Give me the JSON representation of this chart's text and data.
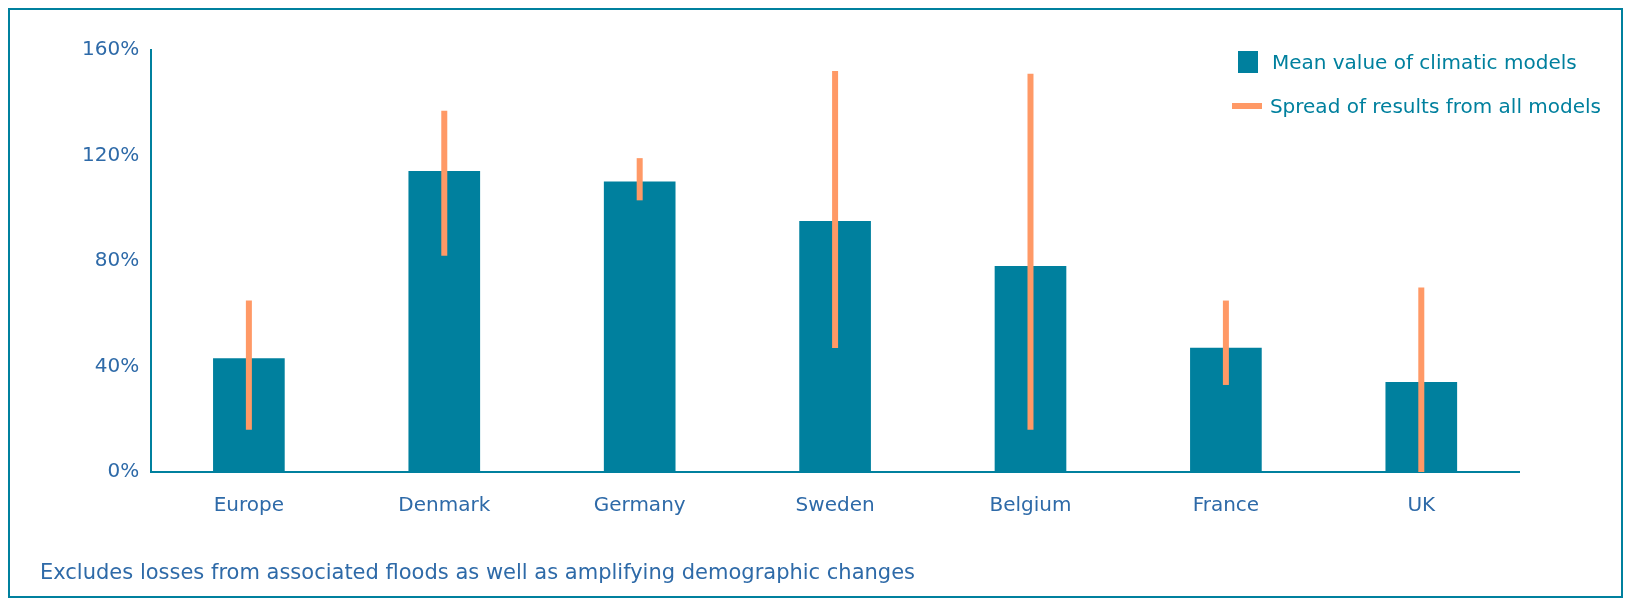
{
  "chart_data": {
    "type": "bar",
    "categories": [
      "Europe",
      "Denmark",
      "Germany",
      "Sweden",
      "Belgium",
      "France",
      "UK"
    ],
    "series": [
      {
        "name": "Mean value of climatic models",
        "color": "#00809e",
        "values": [
          43,
          114,
          110,
          95,
          78,
          47,
          34
        ],
        "errors": [
          [
            16,
            65
          ],
          [
            82,
            137
          ],
          [
            103,
            119
          ],
          [
            47,
            152
          ],
          [
            16,
            151
          ],
          [
            33,
            65
          ],
          [
            0,
            70
          ]
        ]
      }
    ],
    "ylim": [
      0,
      160
    ],
    "yticks": [
      {
        "value": 0,
        "label": "0%"
      },
      {
        "value": 40,
        "label": "40%"
      },
      {
        "value": 80,
        "label": "80%"
      },
      {
        "value": 120,
        "label": "120%"
      },
      {
        "value": 160,
        "label": "160%"
      }
    ],
    "grid": false,
    "legend": "top right",
    "annotations": [
      "Spread of results from all models",
      "Excludes losses from associated floods as well as amplifying demographic changes"
    ]
  }
}
